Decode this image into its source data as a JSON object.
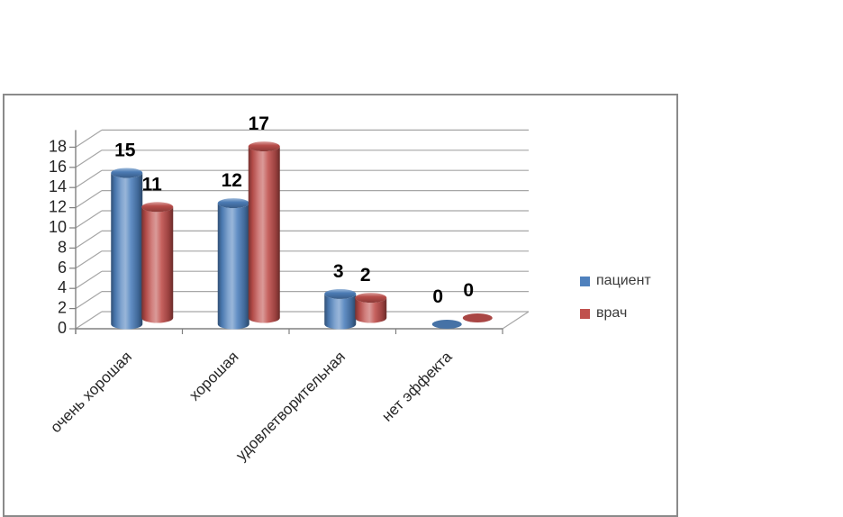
{
  "chart_data": {
    "type": "bar",
    "subtype": "3d-cylinder",
    "title": "",
    "xlabel": "",
    "ylabel": "",
    "categories": [
      "очень хорошая",
      "хорошая",
      "удовлетворительная",
      "нет эффекта"
    ],
    "series": [
      {
        "name": "пациент",
        "color": "#4F81BD",
        "values": [
          15,
          12,
          3,
          0
        ],
        "data_labels": [
          "15",
          "12",
          "3",
          "0"
        ]
      },
      {
        "name": "врач",
        "color": "#C0504D",
        "values": [
          11,
          17,
          2,
          0
        ],
        "data_labels": [
          "11",
          "17",
          "2",
          "0"
        ]
      }
    ],
    "ylim": [
      0,
      18
    ],
    "ytick_step": 2,
    "yticks": [
      0,
      2,
      4,
      6,
      8,
      10,
      12,
      14,
      16,
      18
    ],
    "grid": true,
    "data_labels_shown": true,
    "legend_position": "right",
    "colors": {
      "gridline": "#a6a6a6",
      "axis": "#808080",
      "tick_label": "#262626",
      "category_label": "#262626",
      "data_label": "#000000",
      "frame_border": "#8a8a8a",
      "background": "#ffffff"
    }
  }
}
